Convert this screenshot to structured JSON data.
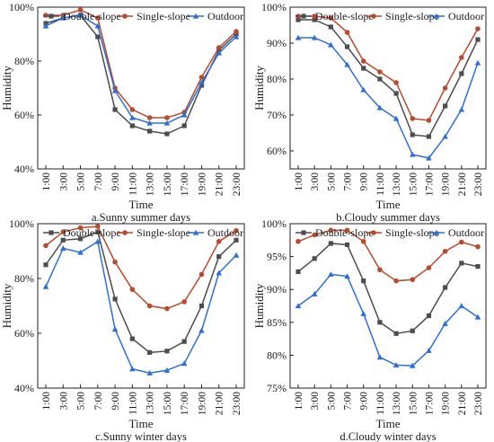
{
  "chart_data": [
    {
      "type": "line",
      "caption": "a.Sunny summer days",
      "xlabel": "Time",
      "ylabel": "Humidity",
      "categories": [
        "1:00",
        "3:00",
        "5:00",
        "7:00",
        "9:00",
        "11:00",
        "13:00",
        "15:00",
        "17:00",
        "19:00",
        "21:00",
        "23:00"
      ],
      "ylim": [
        40,
        100
      ],
      "yticks": [
        40,
        60,
        80,
        100
      ],
      "ytick_labels": [
        "40%",
        "60%",
        "80%",
        "100%"
      ],
      "legend": "top",
      "series": [
        {
          "name": "Double-slope",
          "values": [
            94,
            96,
            97,
            89,
            62,
            56,
            54,
            53,
            56,
            71,
            84,
            90
          ]
        },
        {
          "name": "Single-slope",
          "values": [
            97,
            97,
            99,
            96,
            70,
            62,
            59,
            59,
            61,
            74,
            85,
            91
          ]
        },
        {
          "name": "Outdoor",
          "values": [
            93,
            96,
            97,
            93,
            69,
            59,
            57,
            57,
            60,
            72,
            83,
            89
          ]
        }
      ]
    },
    {
      "type": "line",
      "caption": "b.Cloudy summer days",
      "xlabel": "Time",
      "ylabel": "Humidity",
      "categories": [
        "1:00",
        "3:00",
        "5:00",
        "7:00",
        "9:00",
        "11:00",
        "13:00",
        "15:00",
        "17:00",
        "19:00",
        "21:00",
        "23:00"
      ],
      "ylim": [
        55,
        100
      ],
      "yticks": [
        60,
        70,
        80,
        90,
        100
      ],
      "ytick_labels": [
        "60%",
        "70%",
        "80%",
        "90%",
        "100%"
      ],
      "legend": "top",
      "series": [
        {
          "name": "Double-slope",
          "values": [
            96.5,
            96.5,
            94.5,
            89,
            83,
            80,
            76,
            64.5,
            64,
            72.5,
            81.5,
            91
          ]
        },
        {
          "name": "Single-slope",
          "values": [
            97.5,
            97.5,
            97,
            93,
            85,
            82,
            79,
            69,
            68.5,
            77.5,
            86,
            94
          ]
        },
        {
          "name": "Outdoor",
          "values": [
            91.5,
            91.5,
            89.5,
            84,
            77,
            72,
            69,
            59,
            58,
            64,
            71.5,
            84.5
          ]
        }
      ]
    },
    {
      "type": "line",
      "caption": "c.Sunny winter days",
      "xlabel": "Time",
      "ylabel": "Humidity",
      "categories": [
        "1:00",
        "3:00",
        "5:00",
        "7:00",
        "9:00",
        "11:00",
        "13:00",
        "15:00",
        "17:00",
        "19:00",
        "21:00",
        "23:00"
      ],
      "ylim": [
        40,
        100
      ],
      "yticks": [
        40,
        60,
        80,
        100
      ],
      "ytick_labels": [
        "40%",
        "60%",
        "80%",
        "100%"
      ],
      "legend": "top",
      "series": [
        {
          "name": "Double-slope",
          "values": [
            85,
            94,
            94.5,
            97,
            72.5,
            58,
            53,
            53.5,
            57,
            70,
            88,
            94
          ]
        },
        {
          "name": "Single-slope",
          "values": [
            92,
            97,
            98.5,
            99,
            86,
            76,
            70,
            69,
            71.5,
            81.5,
            93.5,
            97.5
          ]
        },
        {
          "name": "Outdoor",
          "values": [
            77,
            91,
            89.5,
            93.5,
            61.5,
            47,
            45.5,
            46.5,
            49,
            61,
            82,
            88.5
          ]
        }
      ]
    },
    {
      "type": "line",
      "caption": "d.Cloudy winter days",
      "xlabel": "Time",
      "ylabel": "Humidity",
      "categories": [
        "1:00",
        "3:00",
        "5:00",
        "7:00",
        "9:00",
        "11:00",
        "13:00",
        "15:00",
        "17:00",
        "19:00",
        "21:00",
        "23:00"
      ],
      "ylim": [
        75,
        100
      ],
      "yticks": [
        75,
        80,
        85,
        90,
        95,
        100
      ],
      "ytick_labels": [
        "75%",
        "80%",
        "85%",
        "90%",
        "95%",
        "100%"
      ],
      "legend": "top",
      "series": [
        {
          "name": "Double-slope",
          "values": [
            92.7,
            94.7,
            97,
            96.8,
            91.3,
            85,
            83.3,
            83.7,
            86,
            90.3,
            94,
            93.5
          ]
        },
        {
          "name": "Single-slope",
          "values": [
            97.3,
            98.3,
            99,
            99,
            97.3,
            93,
            91.3,
            91.5,
            93.3,
            95.8,
            97.2,
            96.5
          ]
        },
        {
          "name": "Outdoor",
          "values": [
            87.5,
            89.3,
            92.3,
            92,
            86.3,
            79.7,
            78.5,
            78.4,
            80.7,
            84.8,
            87.5,
            85.8
          ]
        }
      ]
    }
  ],
  "series_colors": [
    "#4d4d4d",
    "#b84a2e",
    "#2e6fd6"
  ],
  "series_markers": [
    "square",
    "circle",
    "triangle"
  ]
}
